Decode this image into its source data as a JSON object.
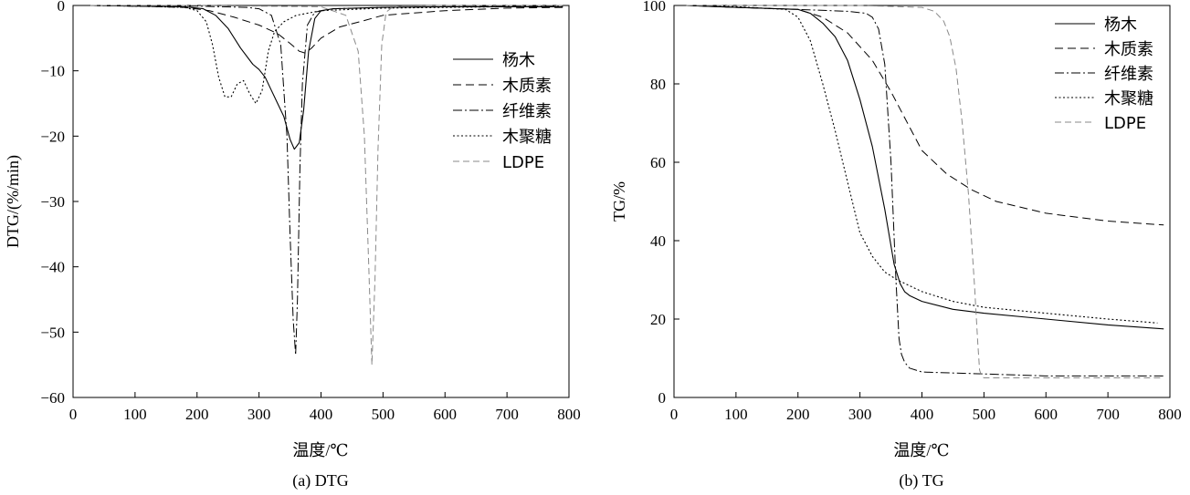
{
  "figure": {
    "panels": [
      {
        "caption": "(a) DTG"
      },
      {
        "caption": "(b) TG"
      }
    ]
  },
  "chart_data": [
    {
      "type": "line",
      "xlabel": "温度/℃",
      "ylabel": "DTG/(%/min)",
      "xlim": [
        0,
        800
      ],
      "ylim": [
        -60,
        0
      ],
      "xticks": [
        0,
        100,
        200,
        300,
        400,
        500,
        600,
        700,
        800
      ],
      "yticks": [
        0,
        -10,
        -20,
        -30,
        -40,
        -50,
        -60
      ],
      "grid": false,
      "legend": "upper right",
      "series": [
        {
          "name": "杨木",
          "style": "solid",
          "x": [
            28,
            100,
            180,
            210,
            230,
            250,
            270,
            290,
            300,
            310,
            320,
            330,
            340,
            350,
            357,
            365,
            372,
            380,
            390,
            400,
            420,
            500,
            600,
            700,
            790
          ],
          "y": [
            0,
            -0.1,
            -0.2,
            -0.5,
            -1.5,
            -3.5,
            -6.5,
            -9,
            -9.8,
            -11,
            -13,
            -15,
            -17,
            -20.5,
            -22,
            -21,
            -16,
            -7,
            -2,
            -0.8,
            -0.5,
            -0.3,
            -0.2,
            -0.2,
            -0.2
          ]
        },
        {
          "name": "木质素",
          "style": "dashed",
          "x": [
            28,
            100,
            180,
            220,
            260,
            300,
            330,
            350,
            365,
            375,
            385,
            400,
            430,
            470,
            500,
            600,
            700,
            790
          ],
          "y": [
            0,
            -0.1,
            -0.3,
            -0.8,
            -1.8,
            -3,
            -4.3,
            -5.8,
            -7,
            -7.3,
            -6.5,
            -5,
            -3.3,
            -2.3,
            -1.5,
            -0.8,
            -0.4,
            -0.3
          ]
        },
        {
          "name": "纤维素",
          "style": "dashdot",
          "x": [
            28,
            100,
            200,
            280,
            300,
            320,
            335,
            345,
            350,
            355,
            359,
            362,
            366,
            370,
            378,
            390,
            420,
            500,
            600,
            700,
            790
          ],
          "y": [
            0,
            -0.1,
            -0.1,
            -0.3,
            -0.5,
            -1.5,
            -6,
            -20,
            -35,
            -48,
            -53.5,
            -45,
            -25,
            -12,
            -3,
            -1,
            -0.5,
            -0.3,
            -0.2,
            -0.1,
            -0.1
          ]
        },
        {
          "name": "木聚糖",
          "style": "dotted",
          "x": [
            28,
            100,
            180,
            200,
            215,
            225,
            235,
            245,
            255,
            265,
            275,
            285,
            295,
            305,
            315,
            325,
            340,
            360,
            400,
            500,
            600,
            700,
            790
          ],
          "y": [
            0,
            -0.1,
            -0.3,
            -0.8,
            -2.5,
            -6,
            -11,
            -14,
            -14,
            -12,
            -11.5,
            -13.5,
            -15,
            -13,
            -7,
            -4,
            -2.5,
            -1.5,
            -0.8,
            -0.4,
            -0.3,
            -0.2,
            -0.2
          ]
        },
        {
          "name": "LDPE",
          "style": "dashed-gray",
          "x": [
            28,
            100,
            200,
            300,
            400,
            440,
            460,
            470,
            477,
            482,
            487,
            492,
            498,
            505,
            515,
            530,
            600,
            700,
            790
          ],
          "y": [
            0,
            0,
            0,
            -0.1,
            -0.2,
            -1.5,
            -7,
            -20,
            -40,
            -55,
            -42,
            -22,
            -6,
            -1,
            -0.3,
            -0.1,
            0,
            0,
            0
          ]
        }
      ]
    },
    {
      "type": "line",
      "xlabel": "温度/℃",
      "ylabel": "TG/%",
      "xlim": [
        0,
        800
      ],
      "ylim": [
        0,
        100
      ],
      "xticks": [
        0,
        100,
        200,
        300,
        400,
        500,
        600,
        700,
        800
      ],
      "yticks": [
        0,
        20,
        40,
        60,
        80,
        100
      ],
      "grid": false,
      "legend": "upper right",
      "series": [
        {
          "name": "杨木",
          "style": "solid",
          "x": [
            20,
            100,
            200,
            220,
            240,
            260,
            280,
            300,
            320,
            340,
            355,
            365,
            372,
            380,
            400,
            450,
            500,
            600,
            700,
            790
          ],
          "y": [
            100,
            99.5,
            99,
            98,
            95.5,
            92,
            86,
            76,
            64,
            48,
            34,
            29,
            27,
            26,
            24.5,
            22.5,
            21.5,
            20,
            18.5,
            17.5
          ]
        },
        {
          "name": "木质素",
          "style": "dashed",
          "x": [
            20,
            100,
            200,
            240,
            280,
            320,
            350,
            380,
            400,
            440,
            480,
            520,
            600,
            700,
            790
          ],
          "y": [
            100,
            99.5,
            99,
            97,
            93,
            86,
            78,
            69,
            63,
            57,
            53,
            50,
            47,
            45,
            44
          ]
        },
        {
          "name": "纤维素",
          "style": "dashdot",
          "x": [
            20,
            100,
            200,
            280,
            310,
            320,
            330,
            340,
            350,
            358,
            363,
            367,
            372,
            380,
            400,
            500,
            600,
            700,
            790
          ],
          "y": [
            100,
            99.5,
            99,
            98.5,
            98,
            97,
            94,
            85,
            60,
            30,
            15,
            11,
            9,
            7.5,
            6.5,
            6,
            5.5,
            5.5,
            5.5
          ]
        },
        {
          "name": "木聚糖",
          "style": "dotted",
          "x": [
            20,
            100,
            180,
            200,
            220,
            240,
            260,
            280,
            300,
            320,
            340,
            360,
            400,
            450,
            500,
            600,
            700,
            780
          ],
          "y": [
            100,
            99.7,
            99,
            97,
            91,
            80,
            68,
            55,
            42,
            36,
            32,
            30,
            27,
            24.5,
            23,
            21.5,
            20,
            19
          ]
        },
        {
          "name": "LDPE",
          "style": "dashed-gray",
          "x": [
            20,
            100,
            200,
            300,
            400,
            420,
            435,
            445,
            455,
            465,
            475,
            485,
            490,
            493,
            496,
            500,
            550,
            600,
            700,
            790
          ],
          "y": [
            100,
            100,
            100,
            100,
            99.5,
            98.5,
            96,
            92,
            84,
            70,
            52,
            28,
            14,
            7,
            5.5,
            5,
            5,
            5,
            5,
            5
          ]
        }
      ]
    }
  ]
}
